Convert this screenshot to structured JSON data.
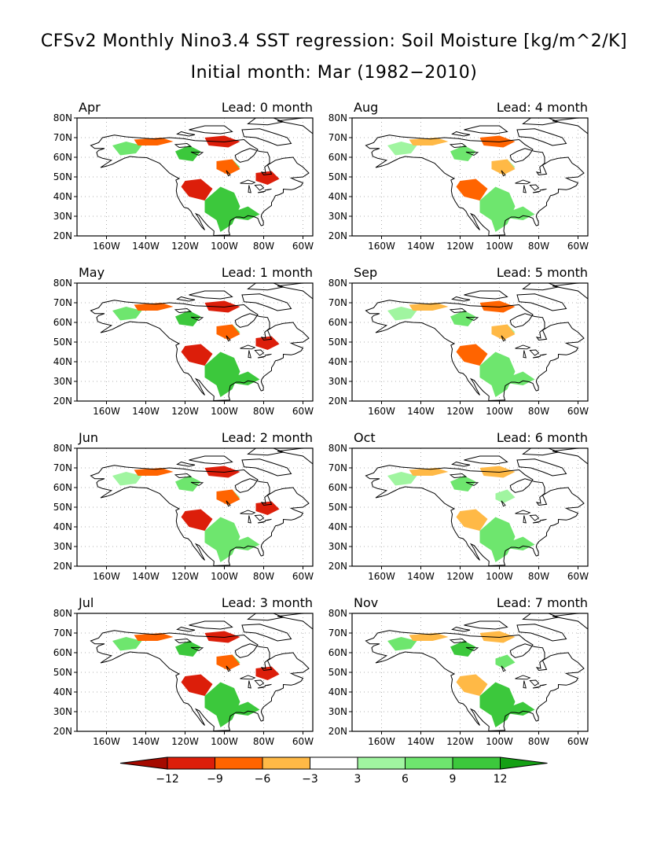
{
  "title_line1": "CFSv2 Monthly Nino3.4 SST regression: Soil Moisture [kg/m^2/K]",
  "title_line2": "Initial month: Mar (1982−2010)",
  "lat_labels": [
    "80N",
    "70N",
    "60N",
    "50N",
    "40N",
    "30N",
    "20N"
  ],
  "lon_labels": [
    "160W",
    "140W",
    "120W",
    "100W",
    "80W",
    "60W"
  ],
  "panels": [
    {
      "month": "Apr",
      "lead": "Lead: 0 month",
      "wet": 3,
      "dry": 3
    },
    {
      "month": "Aug",
      "lead": "Lead: 4 month",
      "wet": 2,
      "dry": 2
    },
    {
      "month": "May",
      "lead": "Lead: 1 month",
      "wet": 3,
      "dry": 3
    },
    {
      "month": "Sep",
      "lead": "Lead: 5 month",
      "wet": 2,
      "dry": 2
    },
    {
      "month": "Jun",
      "lead": "Lead: 2 month",
      "wet": 2,
      "dry": 3
    },
    {
      "month": "Oct",
      "lead": "Lead: 6 month",
      "wet": 2,
      "dry": 1
    },
    {
      "month": "Jul",
      "lead": "Lead: 3 month",
      "wet": 3,
      "dry": 3
    },
    {
      "month": "Nov",
      "lead": "Lead: 7 month",
      "wet": 3,
      "dry": 1
    }
  ],
  "colorbar": {
    "labels": [
      "−12",
      "−9",
      "−6",
      "−3",
      "3",
      "6",
      "9",
      "12"
    ],
    "colors": [
      "#a50a00",
      "#dc1e0a",
      "#ff6400",
      "#ffb946",
      "#ffffff",
      "#a0f5a0",
      "#6ee66e",
      "#3cc83c",
      "#14a014"
    ]
  }
}
